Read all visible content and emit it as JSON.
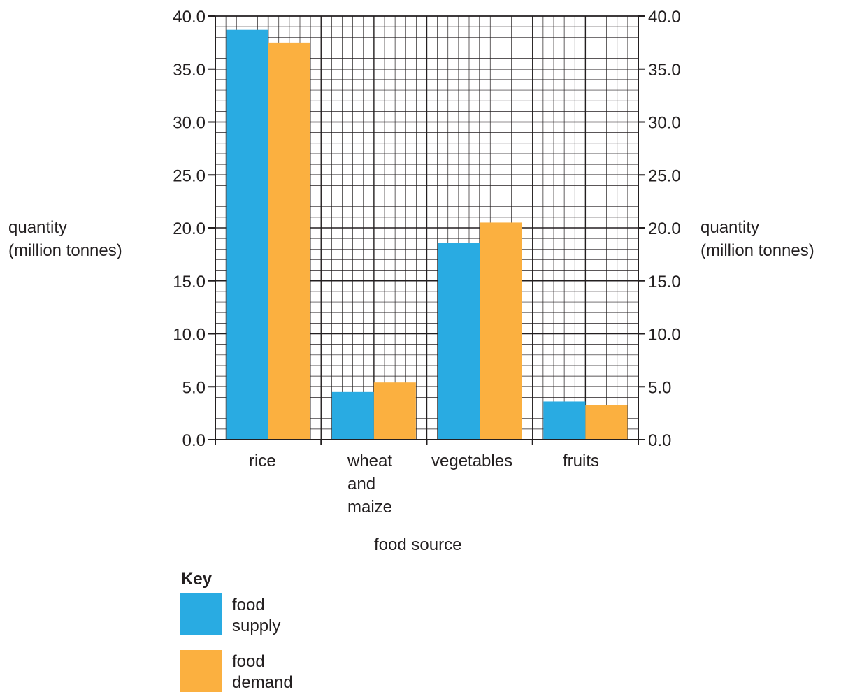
{
  "chart_data": {
    "type": "bar",
    "categories": [
      [
        "rice"
      ],
      [
        "wheat",
        "and",
        "maize"
      ],
      [
        "vegetables"
      ],
      [
        "fruits"
      ]
    ],
    "series": [
      {
        "name": [
          "food",
          "supply"
        ],
        "color": "#29abe2",
        "values": [
          38.7,
          4.5,
          18.6,
          3.6
        ]
      },
      {
        "name": [
          "food",
          "demand"
        ],
        "color": "#fbb040",
        "values": [
          37.5,
          5.4,
          20.5,
          3.3
        ]
      }
    ],
    "xlabel": "food source",
    "ylabel": [
      "quantity",
      "(million tonnes)"
    ],
    "ylim": [
      0,
      40
    ],
    "ytick_step": 5,
    "ytick_labels": [
      "0.0",
      "5.0",
      "10.0",
      "15.0",
      "20.0",
      "25.0",
      "30.0",
      "35.0",
      "40.0"
    ],
    "minor_grid_step": 1,
    "grid": true,
    "legend_title": "Key",
    "legend_position": "bottom-left"
  }
}
